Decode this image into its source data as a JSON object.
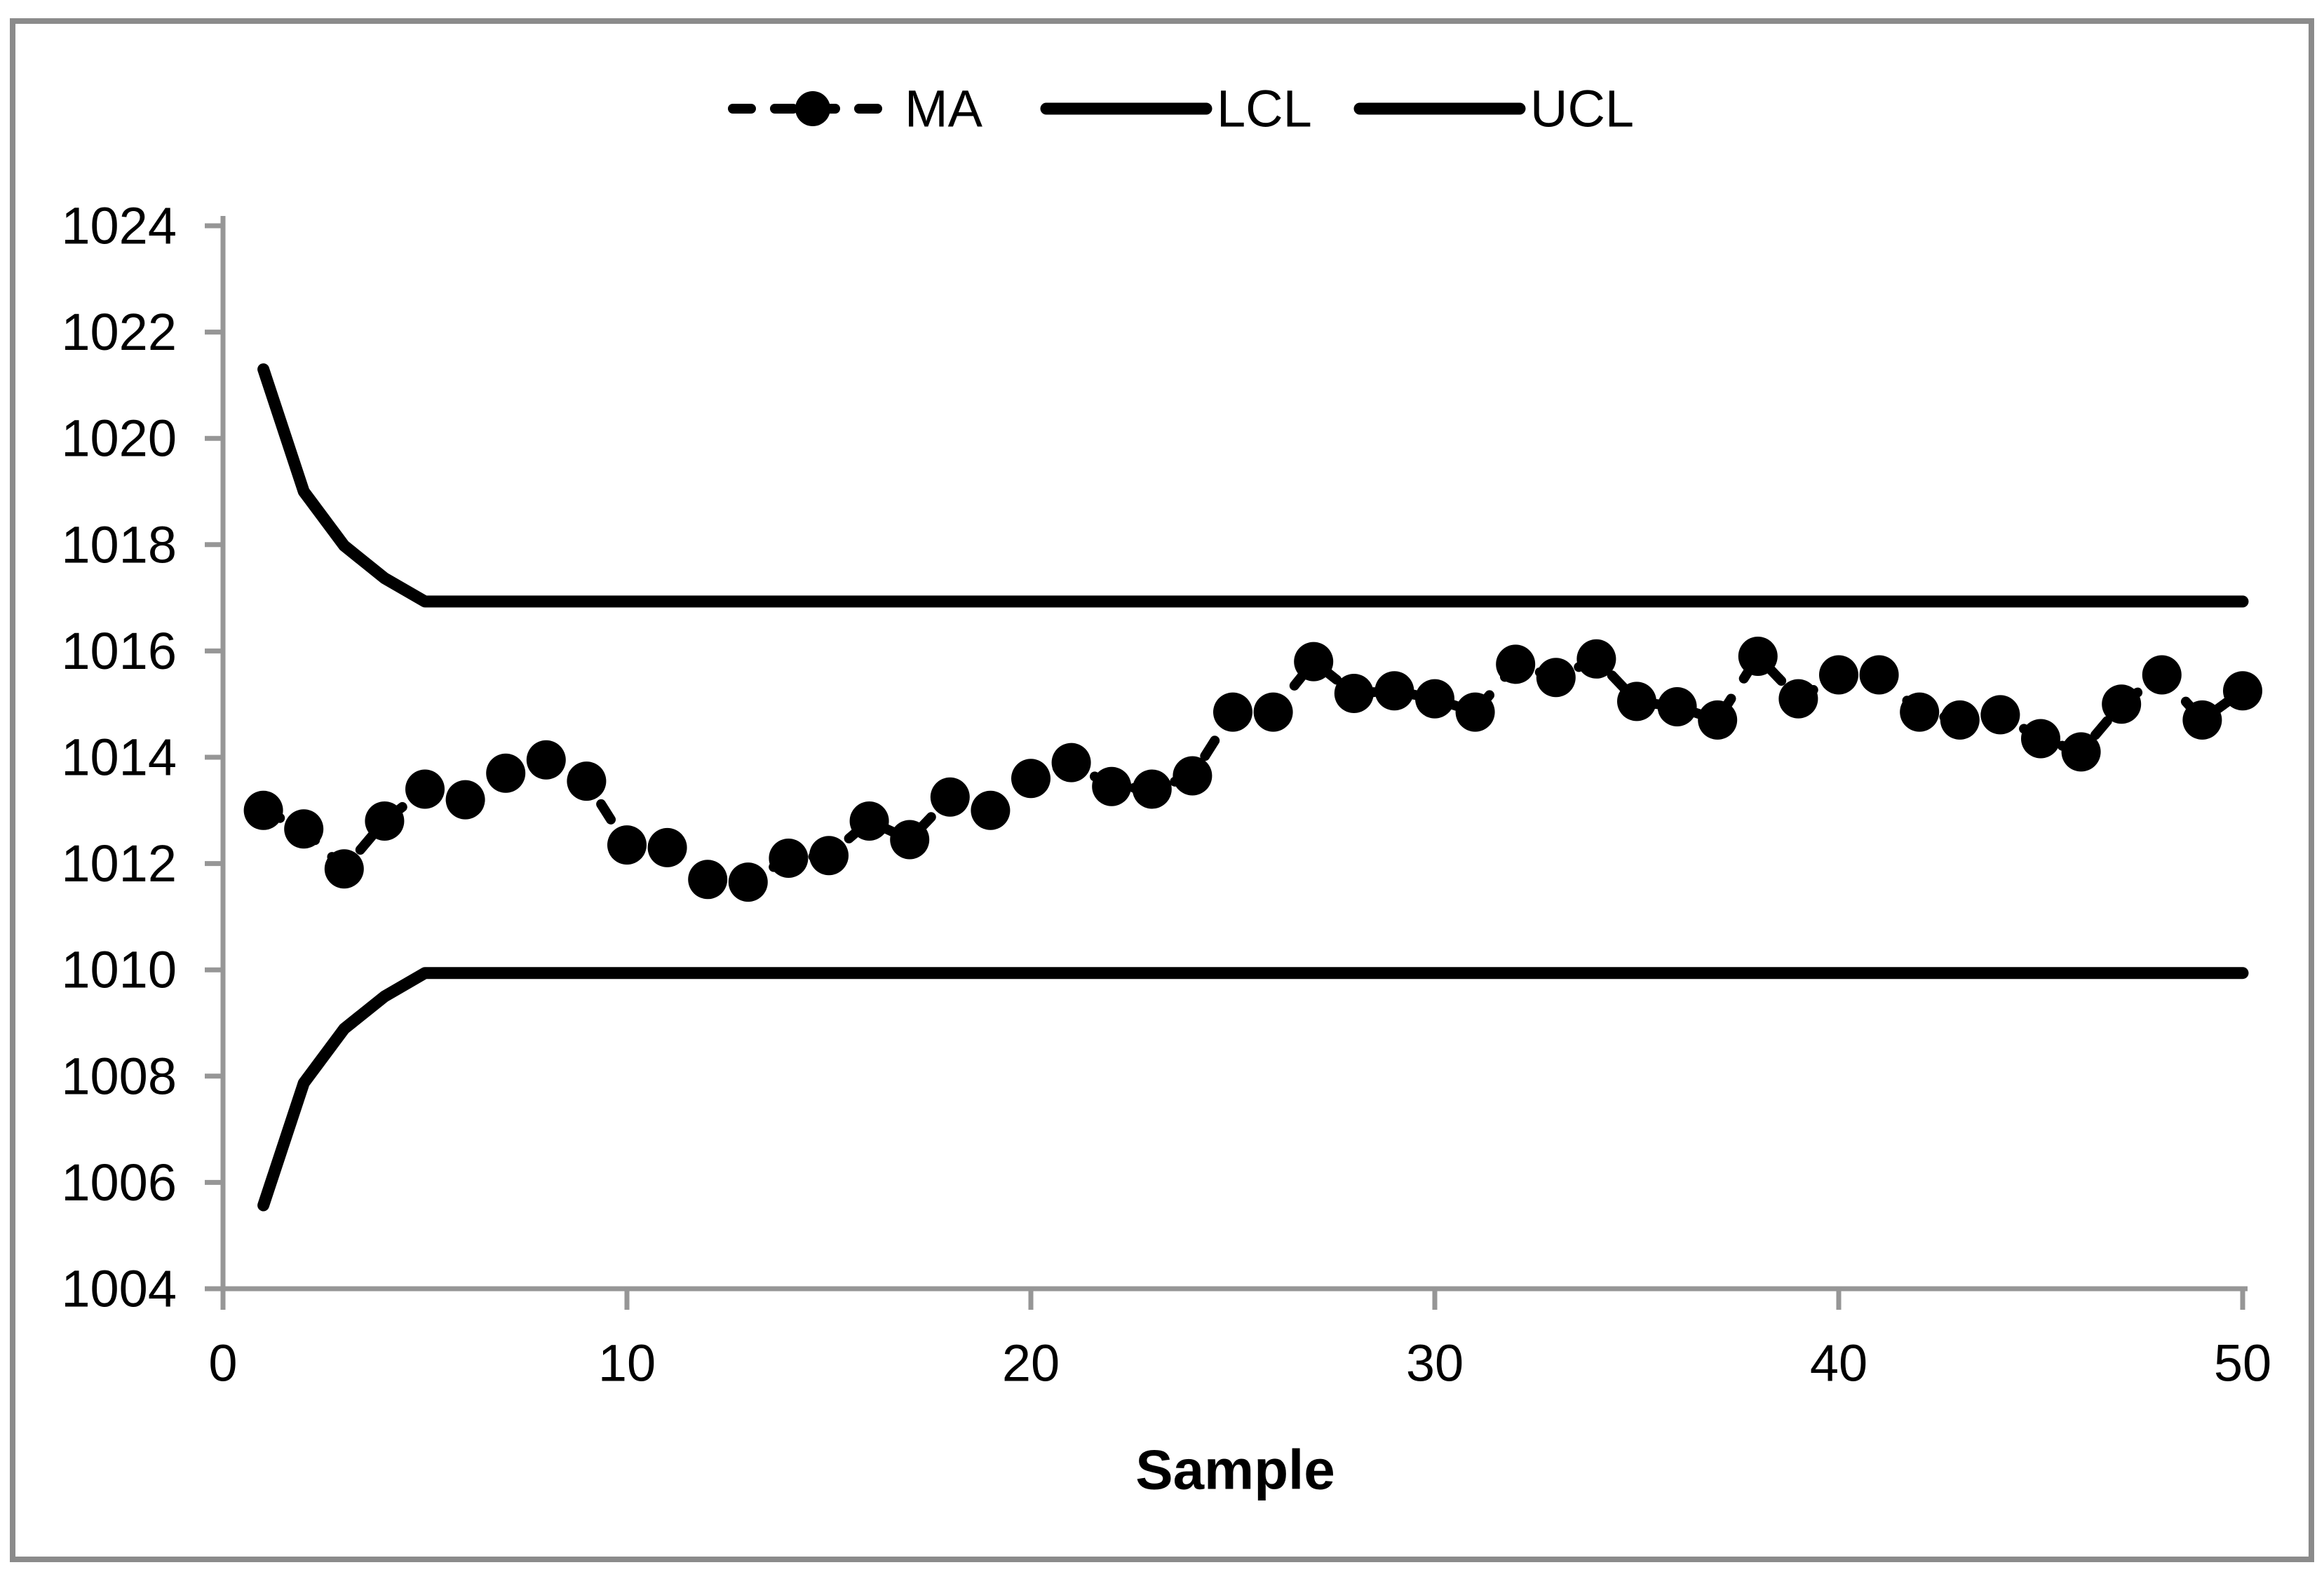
{
  "chart_data": {
    "type": "line",
    "title": "",
    "xlabel": "Sample",
    "ylabel": "",
    "xlim": [
      0,
      50
    ],
    "ylim": [
      1004,
      1024
    ],
    "x_ticks": [
      0,
      10,
      20,
      30,
      40,
      50
    ],
    "y_ticks": [
      1004,
      1006,
      1008,
      1010,
      1012,
      1014,
      1016,
      1018,
      1020,
      1022,
      1024
    ],
    "grid": false,
    "legend_position": "top-center",
    "series": [
      {
        "name": "MA",
        "style": "dashed-with-circle-markers",
        "color": "#000000",
        "x_start": 1,
        "values": [
          1013.0,
          1012.65,
          1011.9,
          1012.8,
          1013.4,
          1013.2,
          1013.7,
          1013.95,
          1013.55,
          1012.35,
          1012.3,
          1011.7,
          1011.65,
          1012.1,
          1012.15,
          1012.8,
          1012.45,
          1013.25,
          1013.0,
          1013.6,
          1013.9,
          1013.45,
          1013.4,
          1013.65,
          1014.85,
          1014.85,
          1015.8,
          1015.2,
          1015.25,
          1015.1,
          1014.85,
          1015.75,
          1015.5,
          1015.85,
          1015.05,
          1014.95,
          1014.7,
          1015.9,
          1015.1,
          1015.55,
          1015.55,
          1014.85,
          1014.7,
          1014.8,
          1014.35,
          1014.1,
          1015.0,
          1015.55,
          1014.7,
          1015.25
        ]
      },
      {
        "name": "LCL",
        "style": "solid",
        "color": "#000000",
        "points": [
          [
            1,
            1005.57
          ],
          [
            2,
            1007.87
          ],
          [
            3,
            1008.89
          ],
          [
            4,
            1009.5
          ],
          [
            5,
            1009.94
          ],
          [
            50,
            1009.94
          ]
        ]
      },
      {
        "name": "UCL",
        "style": "solid",
        "color": "#000000",
        "points": [
          [
            1,
            1021.3
          ],
          [
            2,
            1019.0
          ],
          [
            3,
            1017.98
          ],
          [
            4,
            1017.37
          ],
          [
            5,
            1016.93
          ],
          [
            50,
            1016.93
          ]
        ]
      }
    ]
  },
  "legend": {
    "items": [
      "MA",
      "LCL",
      "UCL"
    ]
  },
  "axes": {
    "x_label": "Sample"
  },
  "colors": {
    "series": "#000000",
    "axis": "#969696",
    "tick_text": "#000000",
    "frame_border": "#8b8b8b",
    "background": "#ffffff"
  }
}
